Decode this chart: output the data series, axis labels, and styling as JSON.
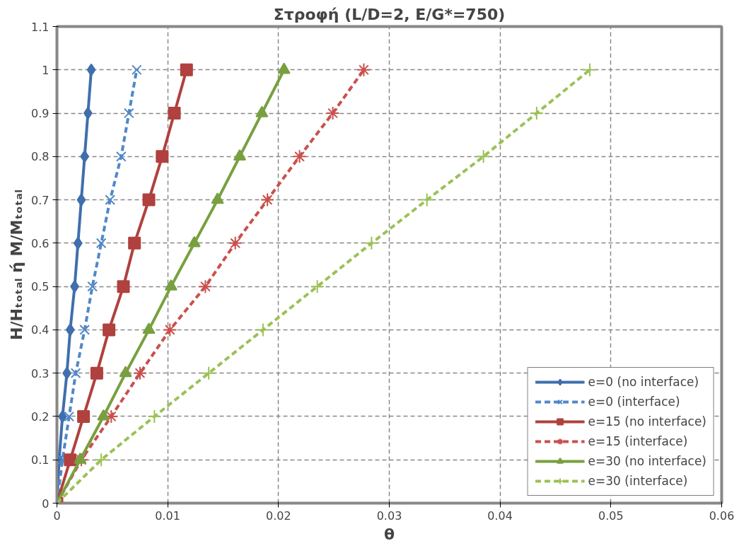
{
  "chart_data": {
    "type": "line",
    "title": "Στροφή (L/D=2, E/G*=750)",
    "xlabel": "θ",
    "ylabel": "H/Hₜₒₜₐₗ ή M/Mₜₒₜₐₗ",
    "xlim": [
      0,
      0.06
    ],
    "xticks": [
      0,
      0.01,
      0.02,
      0.03,
      0.04,
      0.05,
      0.06
    ],
    "ylim": [
      0,
      1.1
    ],
    "yticks": [
      0,
      0.1,
      0.2,
      0.3,
      0.4,
      0.5,
      0.6,
      0.7,
      0.8,
      0.9,
      1,
      1.1
    ],
    "grid": true,
    "legend": "bottom right",
    "series": [
      {
        "name": "e=0 (no interface)",
        "color": "#3f6fad",
        "marker": "diamond",
        "line_style": "solid",
        "x": [
          0,
          0.0002,
          0.0005,
          0.0009,
          0.0012,
          0.0016,
          0.0019,
          0.0022,
          0.0025,
          0.0028,
          0.0031
        ],
        "values": [
          0,
          0.1,
          0.2,
          0.3,
          0.4,
          0.5,
          0.6,
          0.7,
          0.8,
          0.9,
          1
        ]
      },
      {
        "name": "e=0 (interface)",
        "color": "#5088c8",
        "marker": "cross",
        "line_style": "dashed",
        "x": [
          0,
          0.0005,
          0.0011,
          0.0017,
          0.0025,
          0.0032,
          0.004,
          0.0048,
          0.0058,
          0.0065,
          0.0072
        ],
        "values": [
          0,
          0.1,
          0.2,
          0.3,
          0.4,
          0.5,
          0.6,
          0.7,
          0.8,
          0.9,
          1
        ]
      },
      {
        "name": "e=15 (no interface)",
        "color": "#b0413e",
        "marker": "square",
        "line_style": "solid",
        "x": [
          0,
          0.0012,
          0.0024,
          0.0036,
          0.0047,
          0.006,
          0.007,
          0.0083,
          0.0095,
          0.0106,
          0.0117
        ],
        "values": [
          0,
          0.1,
          0.2,
          0.3,
          0.4,
          0.5,
          0.6,
          0.7,
          0.8,
          0.9,
          1
        ]
      },
      {
        "name": "e=15 (interface)",
        "color": "#c9504d",
        "marker": "cross",
        "line_style": "dashed",
        "x": [
          0,
          0.0022,
          0.0049,
          0.0075,
          0.0102,
          0.0134,
          0.0161,
          0.019,
          0.0219,
          0.0249,
          0.0277
        ],
        "values": [
          0,
          0.1,
          0.2,
          0.3,
          0.4,
          0.5,
          0.6,
          0.7,
          0.8,
          0.9,
          1
        ]
      },
      {
        "name": "e=30 (no interface)",
        "color": "#78a040",
        "marker": "triangle",
        "line_style": "solid",
        "x": [
          0,
          0.0021,
          0.0042,
          0.0062,
          0.0083,
          0.0103,
          0.0124,
          0.0145,
          0.0165,
          0.0185,
          0.0205
        ],
        "values": [
          0,
          0.1,
          0.2,
          0.3,
          0.4,
          0.5,
          0.6,
          0.7,
          0.8,
          0.9,
          1
        ]
      },
      {
        "name": "e=30 (interface)",
        "color": "#9bc156",
        "marker": "cross",
        "line_style": "dashed",
        "x": [
          0,
          0.004,
          0.0088,
          0.0137,
          0.0186,
          0.0235,
          0.0284,
          0.0334,
          0.0385,
          0.0433,
          0.0481
        ],
        "values": [
          0,
          0.1,
          0.2,
          0.3,
          0.4,
          0.5,
          0.6,
          0.7,
          0.8,
          0.9,
          1
        ]
      }
    ]
  }
}
